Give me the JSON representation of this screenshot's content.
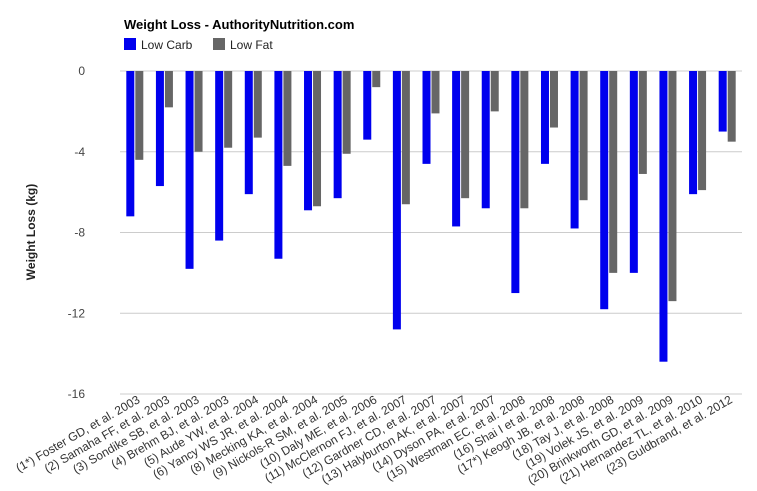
{
  "chart_data": {
    "type": "bar",
    "title": "Weight Loss - AuthorityNutrition.com",
    "xlabel": "",
    "ylabel": "Weight Loss (kg)",
    "ylim": [
      -16,
      0
    ],
    "yticks": [
      0,
      -4,
      -8,
      -12,
      -16
    ],
    "grid": true,
    "legend_position": "top-left",
    "categories": [
      "(1*) Foster GD, et al. 2003",
      "(2) Samaha FF, et al. 2003",
      "(3) Sondike SB, et al. 2003",
      "(4) Brehm BJ, et al. 2003",
      "(5) Aude YW, et al. 2004",
      "(6) Yancy WS JR, et al. 2004",
      "(8) Mecking KA, et al. 2004",
      "(9) Nickols-R SM, et al. 2005",
      "(10) Daly ME, et al. 2006",
      "(11) McClernon FJ, et al. 2007",
      "(12) Gardner CD, et al. 2007",
      "(13) Halyburton AK, et al. 2007",
      "(14) Dyson PA, et al. 2007",
      "(15) Westman EC, et al. 2008",
      "(16) Shai I et al. 2008",
      "(17*) Keogh JB, et al. 2008",
      "(18) Tay J, et al. 2008",
      "(19) Volek JS, et al. 2009",
      "(20) Brinkworth GD, et al. 2009",
      "(21) Hernandez TL, et al. 2010",
      "(23) Guldbrand, et al. 2012"
    ],
    "series": [
      {
        "name": "Low Carb",
        "color": "#0000ee",
        "values": [
          -7.2,
          -5.7,
          -9.8,
          -8.4,
          -6.1,
          -9.3,
          -6.9,
          -6.3,
          -3.4,
          -12.8,
          -4.6,
          -7.7,
          -6.8,
          -11.0,
          -4.6,
          -7.8,
          -11.8,
          -10.0,
          -14.4,
          -6.1,
          -3.0
        ]
      },
      {
        "name": "Low Fat",
        "color": "#666666",
        "values": [
          -4.4,
          -1.8,
          -4.0,
          -3.8,
          -3.3,
          -4.7,
          -6.7,
          -4.1,
          -0.8,
          -6.6,
          -2.1,
          -6.3,
          -2.0,
          -6.8,
          -2.8,
          -6.4,
          -10.0,
          -5.1,
          -11.4,
          -5.9,
          -3.5
        ]
      }
    ]
  }
}
